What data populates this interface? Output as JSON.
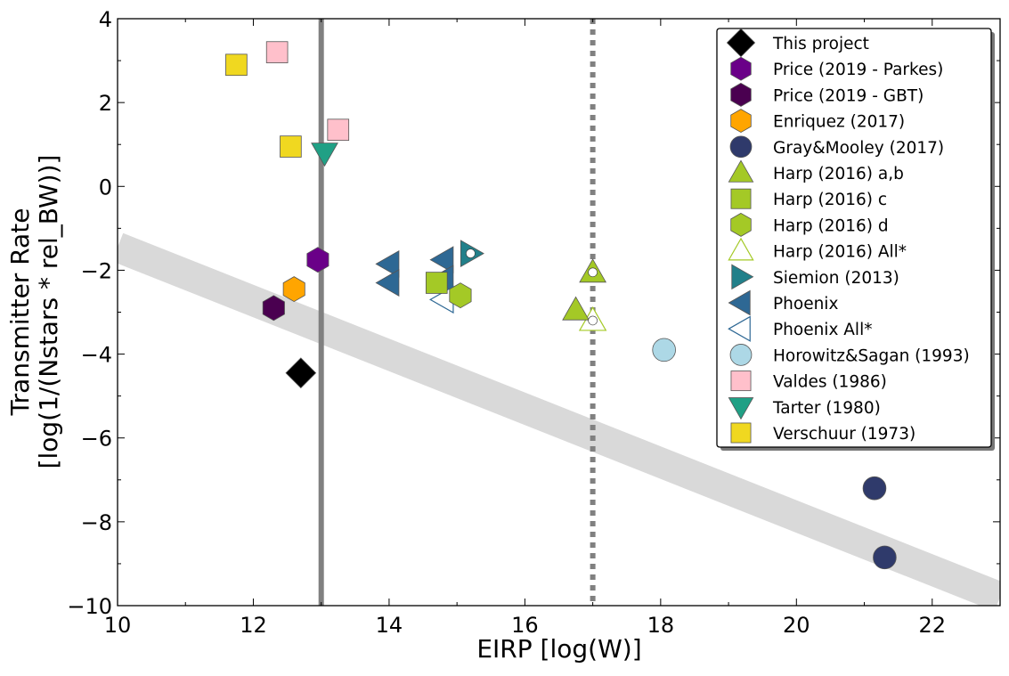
{
  "chart_data": {
    "type": "scatter",
    "xlabel": "EIRP [log(W)]",
    "ylabel_lines": [
      "Transmitter Rate",
      "[log(1/(Nstars * rel_BW))]"
    ],
    "xlim": [
      10,
      23
    ],
    "ylim": [
      -10,
      4
    ],
    "x_ticks": [
      10,
      12,
      14,
      16,
      18,
      20,
      22
    ],
    "y_ticks": [
      4,
      2,
      0,
      -2,
      -4,
      -6,
      -8,
      -10
    ],
    "x_tick_labels": [
      "10",
      "12",
      "14",
      "16",
      "18",
      "20",
      "22"
    ],
    "y_tick_labels": [
      "4",
      "2",
      "0",
      "−2",
      "−4",
      "−6",
      "−8",
      "−10"
    ],
    "grid": false,
    "legend_position": "top-right",
    "reference_lines": [
      {
        "type": "vertical",
        "x": 13.0,
        "style": "solid",
        "color": "#808080"
      },
      {
        "type": "vertical",
        "x": 17.0,
        "style": "dotted",
        "color": "#808080"
      }
    ],
    "reference_band": {
      "from": [
        10,
        -1.45
      ],
      "to": [
        23,
        -9.8
      ],
      "color": "#d9d9d9"
    },
    "series": [
      {
        "name": "This project",
        "marker": "diamond",
        "color": "#000000",
        "filled": true,
        "points": [
          [
            12.7,
            -4.45
          ]
        ]
      },
      {
        "name": "Price (2019 - Parkes)",
        "marker": "hexagon",
        "color": "#6a0088",
        "filled": true,
        "points": [
          [
            12.95,
            -1.75
          ]
        ]
      },
      {
        "name": "Price (2019 - GBT)",
        "marker": "hexagon",
        "color": "#4a0050",
        "filled": true,
        "points": [
          [
            12.3,
            -2.9
          ]
        ]
      },
      {
        "name": "Enriquez (2017)",
        "marker": "hexagon",
        "color": "#ffa500",
        "filled": true,
        "points": [
          [
            12.6,
            -2.45
          ]
        ]
      },
      {
        "name": "Gray&Mooley (2017)",
        "marker": "circle",
        "color": "#2f3a6b",
        "filled": true,
        "points": [
          [
            21.15,
            -7.2
          ],
          [
            21.3,
            -8.85
          ]
        ]
      },
      {
        "name": "Harp (2016) a,b",
        "marker": "triangle-up",
        "color": "#a4c926",
        "filled": true,
        "points": [
          [
            17.0,
            -2.05
          ],
          [
            16.75,
            -2.95
          ]
        ]
      },
      {
        "name": "Harp (2016) c",
        "marker": "square",
        "color": "#a4c926",
        "filled": true,
        "points": [
          [
            14.7,
            -2.3
          ]
        ]
      },
      {
        "name": "Harp (2016) d",
        "marker": "hexagon",
        "color": "#a4c926",
        "filled": true,
        "points": [
          [
            15.05,
            -2.6
          ]
        ]
      },
      {
        "name": "Harp (2016) All*",
        "marker": "triangle-up",
        "color": "#a4c926",
        "filled": false,
        "points": [
          [
            17.0,
            -3.2
          ]
        ]
      },
      {
        "name": "Siemion (2013)",
        "marker": "triangle-right",
        "color": "#22808a",
        "filled": true,
        "points": [
          [
            15.2,
            -1.6
          ]
        ]
      },
      {
        "name": "Phoenix",
        "marker": "triangle-left",
        "color": "#2e6894",
        "filled": true,
        "points": [
          [
            14.0,
            -1.85
          ],
          [
            14.0,
            -2.3
          ],
          [
            14.8,
            -1.75
          ],
          [
            14.8,
            -2.2
          ]
        ]
      },
      {
        "name": "Phoenix All*",
        "marker": "triangle-left",
        "color": "#2e6894",
        "filled": false,
        "points": [
          [
            14.8,
            -2.7
          ]
        ]
      },
      {
        "name": "Horowitz&Sagan (1993)",
        "marker": "circle",
        "color": "#add8e6",
        "filled": true,
        "points": [
          [
            18.05,
            -3.9
          ]
        ]
      },
      {
        "name": "Valdes (1986)",
        "marker": "square",
        "color": "#ffc0cb",
        "filled": true,
        "points": [
          [
            12.35,
            3.2
          ],
          [
            13.25,
            1.35
          ]
        ]
      },
      {
        "name": "Tarter (1980)",
        "marker": "triangle-down",
        "color": "#20a085",
        "filled": true,
        "points": [
          [
            13.05,
            0.8
          ]
        ]
      },
      {
        "name": "Verschuur (1973)",
        "marker": "square",
        "color": "#f0d820",
        "filled": true,
        "points": [
          [
            11.75,
            2.9
          ],
          [
            12.55,
            0.95
          ]
        ]
      }
    ],
    "white_dots": [
      [
        15.2,
        -1.6
      ],
      [
        17.0,
        -2.05
      ],
      [
        17.0,
        -3.2
      ]
    ]
  }
}
